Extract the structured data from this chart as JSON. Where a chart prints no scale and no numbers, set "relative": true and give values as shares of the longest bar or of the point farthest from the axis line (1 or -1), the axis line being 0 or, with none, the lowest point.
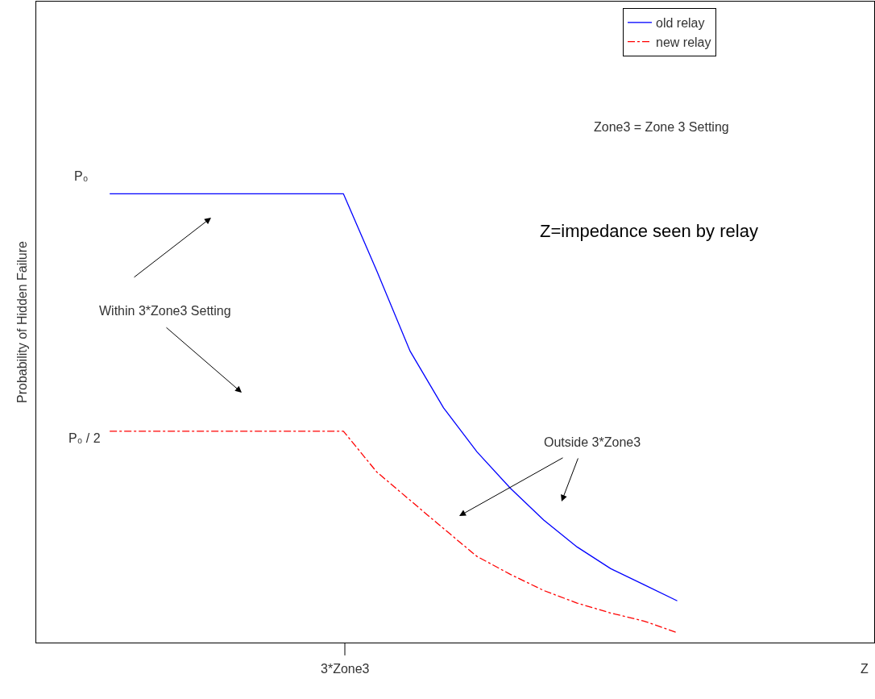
{
  "chart_data": {
    "type": "line",
    "relative": true,
    "ylabel": "Probability of Hidden Failure",
    "categories": [
      null,
      null,
      null,
      null,
      null,
      null,
      null,
      null,
      null,
      null,
      null,
      null,
      null,
      null,
      null,
      null,
      null,
      null
    ],
    "series": [
      {
        "name": "old relay",
        "color": "#0000ff",
        "line_style": "solid",
        "values": [
          1,
          1,
          1,
          1,
          1,
          1,
          1,
          1,
          0.828,
          0.649,
          0.523,
          0.425,
          0.344,
          0.273,
          0.213,
          0.165,
          0.129,
          0.093
        ]
      },
      {
        "name": "new relay",
        "color": "#ff0000",
        "line_style": "dashed",
        "values": [
          0.471,
          0.471,
          0.471,
          0.471,
          0.471,
          0.471,
          0.471,
          0.471,
          0.38,
          0.317,
          0.254,
          0.192,
          0.152,
          0.116,
          0.088,
          0.066,
          0.048,
          0.022
        ]
      }
    ],
    "annotations": [
      "P₀",
      "P₀ / 2",
      "Within 3*Zone3 Setting",
      "Outside 3*Zone3",
      "Zone3 = Zone 3 Setting",
      "Z=impedance seen by relay",
      "3*Zone3",
      "Z"
    ],
    "legend": "top right",
    "marker": "none"
  }
}
